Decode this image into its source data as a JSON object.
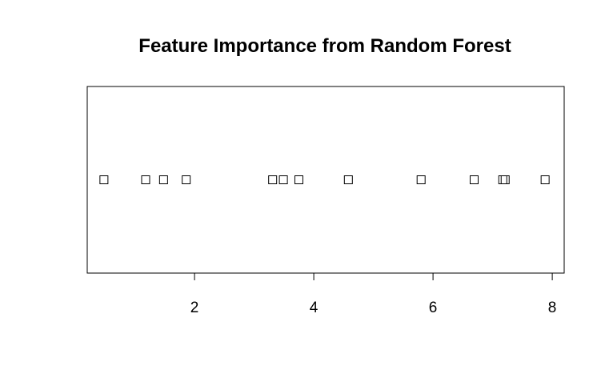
{
  "chart_data": {
    "type": "scatter",
    "title": "Feature Importance from Random Forest",
    "xlabel": "",
    "ylabel": "",
    "x": [
      0.48,
      1.18,
      1.48,
      1.86,
      3.31,
      3.49,
      3.75,
      4.58,
      5.8,
      6.69,
      7.17,
      7.21,
      7.88
    ],
    "xlim": [
      0.2,
      8.2
    ],
    "xticks": [
      2,
      4,
      6,
      8
    ],
    "tick_labels": [
      "2",
      "4",
      "6",
      "8"
    ],
    "marker": "open-square",
    "grid": false,
    "legend": "none"
  }
}
